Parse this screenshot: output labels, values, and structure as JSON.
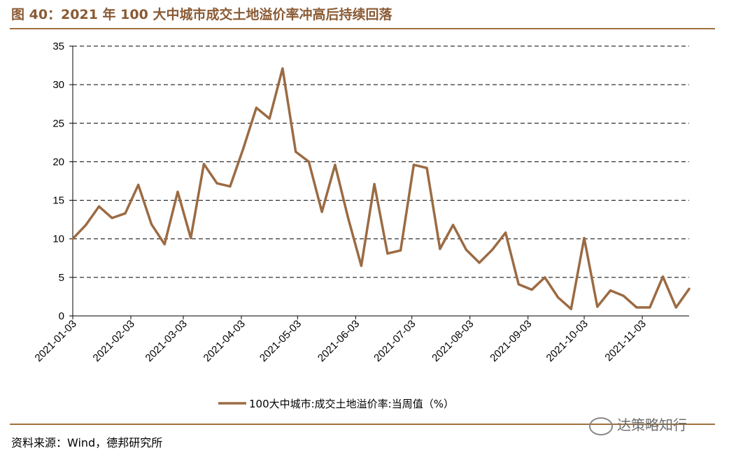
{
  "title": "图 40：2021 年 100 大中城市成交土地溢价率冲高后持续回落",
  "source": "资料来源：Wind，德邦研究所",
  "watermark": "达策略知行",
  "colors": {
    "line": "#9b6b43",
    "accent": "#8a5a34",
    "rule": "#a0703f",
    "grid": "#000000"
  },
  "chart_data": {
    "type": "line",
    "x_tick_labels": [
      "2021-01-03",
      "2021-02-03",
      "2021-03-03",
      "2021-04-03",
      "2021-05-03",
      "2021-06-03",
      "2021-07-03",
      "2021-08-03",
      "2021-09-03",
      "2021-10-03",
      "2021-11-03"
    ],
    "ylim": [
      0,
      35
    ],
    "y_ticks": [
      0,
      5,
      10,
      15,
      20,
      25,
      30,
      35
    ],
    "grid": "horizontal dashed",
    "legend_position": "bottom-center",
    "series": [
      {
        "name": "100大中城市:成交土地溢价率:当周值（%）",
        "x": [
          "2021-01-03",
          "2021-01-10",
          "2021-01-17",
          "2021-01-24",
          "2021-01-31",
          "2021-02-07",
          "2021-02-14",
          "2021-02-21",
          "2021-02-28",
          "2021-03-07",
          "2021-03-14",
          "2021-03-21",
          "2021-03-28",
          "2021-04-04",
          "2021-04-11",
          "2021-04-18",
          "2021-04-25",
          "2021-05-02",
          "2021-05-09",
          "2021-05-16",
          "2021-05-23",
          "2021-05-30",
          "2021-06-06",
          "2021-06-13",
          "2021-06-20",
          "2021-06-27",
          "2021-07-04",
          "2021-07-11",
          "2021-07-18",
          "2021-07-25",
          "2021-08-01",
          "2021-08-08",
          "2021-08-15",
          "2021-08-22",
          "2021-08-29",
          "2021-09-05",
          "2021-09-12",
          "2021-09-19",
          "2021-09-26",
          "2021-10-03",
          "2021-10-10",
          "2021-10-17",
          "2021-10-24",
          "2021-10-31",
          "2021-11-07",
          "2021-11-14",
          "2021-11-21",
          "2021-11-28"
        ],
        "values": [
          10.0,
          11.8,
          14.2,
          12.7,
          13.3,
          17.0,
          11.9,
          9.3,
          16.1,
          10.1,
          19.7,
          17.2,
          16.8,
          21.7,
          27.0,
          25.6,
          32.1,
          21.3,
          20.0,
          13.5,
          19.6,
          12.7,
          6.5,
          17.1,
          8.1,
          8.5,
          19.6,
          19.2,
          8.7,
          11.8,
          8.6,
          6.9,
          8.6,
          10.8,
          4.1,
          3.4,
          5.0,
          2.4,
          0.9,
          10.1,
          1.2,
          3.3,
          2.6,
          1.1,
          1.1,
          5.1,
          1.1,
          3.5
        ]
      }
    ]
  }
}
